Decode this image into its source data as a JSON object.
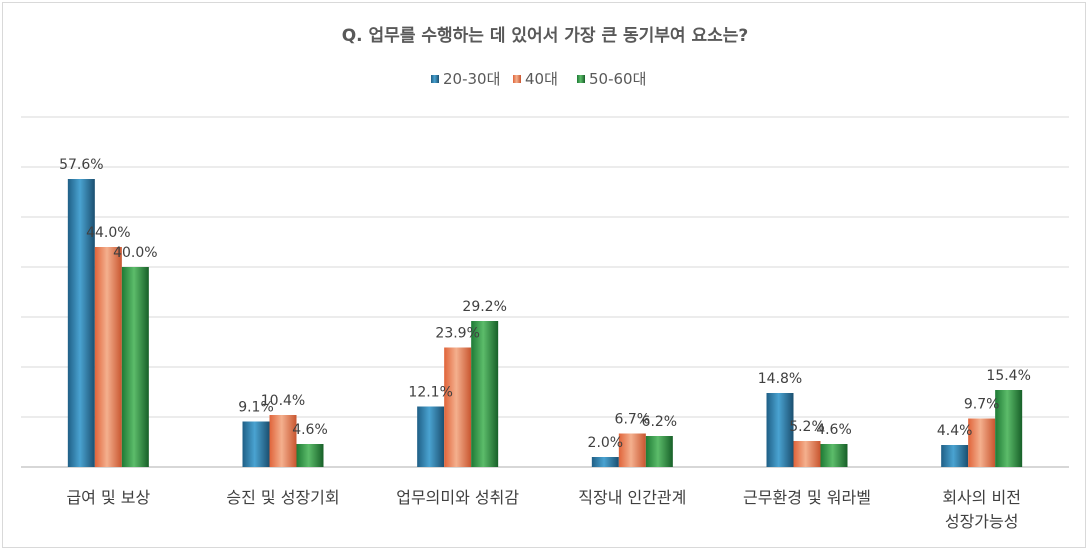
{
  "chart_data": {
    "type": "bar",
    "title": "Q. 업무를 수행하는 데 있어서 가장 큰 동기부여 요소는?",
    "categories": [
      [
        "급여 및 보상"
      ],
      [
        "승진 및 성장기회"
      ],
      [
        "업무의미와 성취감"
      ],
      [
        "직장내 인간관계"
      ],
      [
        "근무환경 및 워라벨"
      ],
      [
        "회사의 비전",
        "성장가능성"
      ]
    ],
    "series": [
      {
        "name": "20-30대",
        "values": [
          57.6,
          9.1,
          12.1,
          2.0,
          14.8,
          4.4
        ],
        "labels": [
          "57.6%",
          "9.1%",
          "12.1%",
          "2.0%",
          "14.8%",
          "4.4%"
        ]
      },
      {
        "name": "40대",
        "values": [
          44.0,
          10.4,
          23.9,
          6.7,
          5.2,
          9.7
        ],
        "labels": [
          "44.0%",
          "10.4%",
          "23.9%",
          "6.7%",
          "5.2%",
          "9.7%"
        ]
      },
      {
        "name": "50-60대",
        "values": [
          40.0,
          4.6,
          29.2,
          6.2,
          4.6,
          15.4
        ],
        "labels": [
          "40.0%",
          "4.6%",
          "29.2%",
          "6.2%",
          "4.6%",
          "15.4%"
        ]
      }
    ],
    "ylim": [
      0,
      70
    ],
    "grid": true,
    "legend_position": "top-center",
    "colors": {
      "20-30대": [
        "#1f5f86",
        "#4aa3d1",
        "#1b4f70"
      ],
      "40대": [
        "#e0643a",
        "#f4b08e",
        "#c8552f"
      ],
      "50-60대": [
        "#1e7a35",
        "#5cbc6a",
        "#176028"
      ]
    }
  }
}
